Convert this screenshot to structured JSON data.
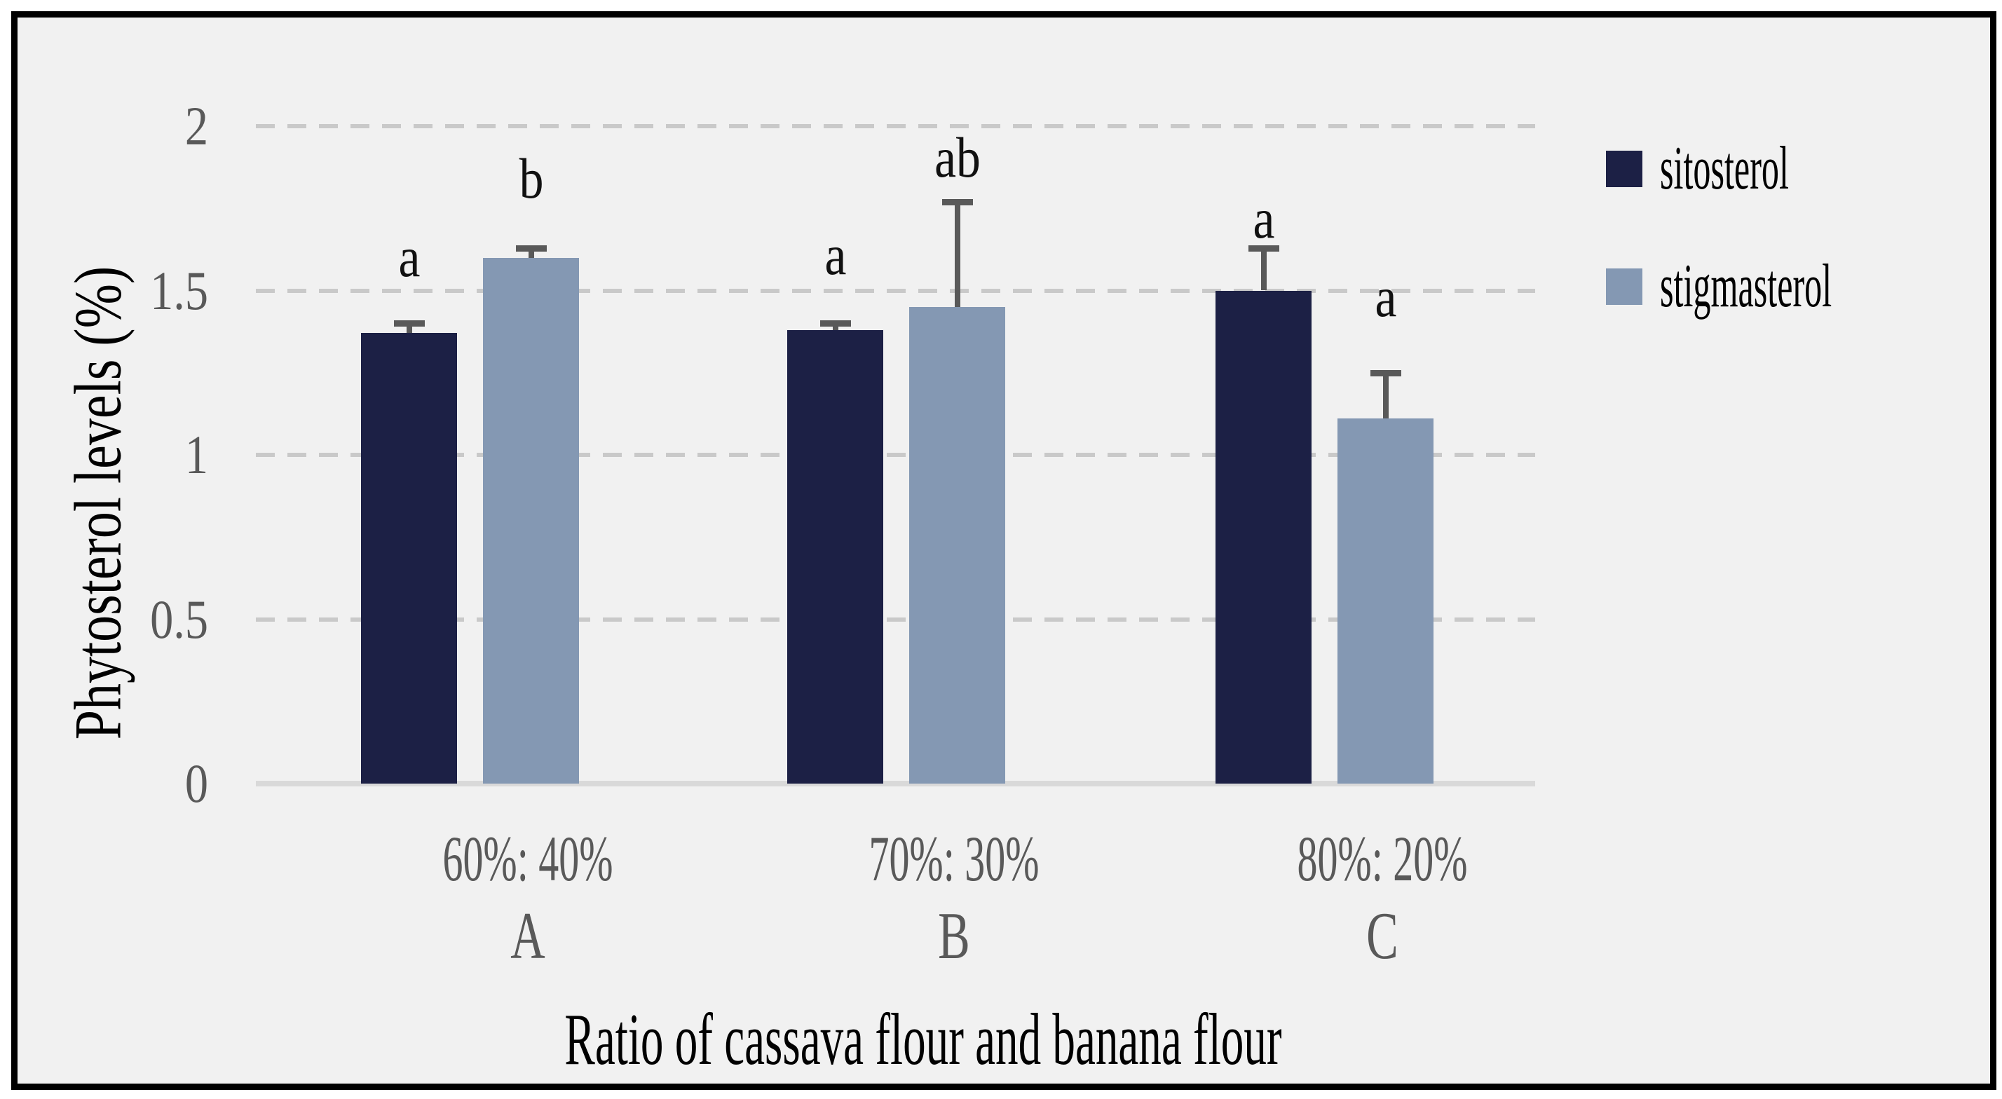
{
  "figure": {
    "panel_background": "#f1f1f1",
    "frame_border_color": "#000000",
    "gridline_color": "#c9c9c9",
    "axis_line_color": "#d9d9d9",
    "tick_text_color": "#595959",
    "error_bar_color": "#595959"
  },
  "chart_data": {
    "type": "bar",
    "title": "",
    "xlabel": "Ratio of cassava flour and banana flour",
    "ylabel": "Phytosterol levels (%)",
    "ylim": [
      0,
      2
    ],
    "yticks": [
      0,
      0.5,
      1,
      1.5,
      2
    ],
    "ytick_labels": [
      "0",
      "0.5",
      "1",
      "1.5",
      "2"
    ],
    "grid": "horizontal dashed",
    "legend_position": "right",
    "categories": [
      {
        "ratio_label": "60%: 40%",
        "group_letter": "A"
      },
      {
        "ratio_label": "70%: 30%",
        "group_letter": "B"
      },
      {
        "ratio_label": "80%: 20%",
        "group_letter": "C"
      }
    ],
    "series": [
      {
        "name": "sitosterol",
        "color": "#1c2045",
        "values": [
          1.37,
          1.38,
          1.5
        ],
        "errors_plus": [
          0.03,
          0.02,
          0.13
        ],
        "sig_letters": [
          "a",
          "a",
          "a"
        ]
      },
      {
        "name": "stigmasterol",
        "color": "#8498b3",
        "values": [
          1.6,
          1.45,
          1.11
        ],
        "errors_plus": [
          0.03,
          0.32,
          0.14
        ],
        "sig_letters": [
          "b",
          "ab",
          "a"
        ]
      }
    ]
  }
}
